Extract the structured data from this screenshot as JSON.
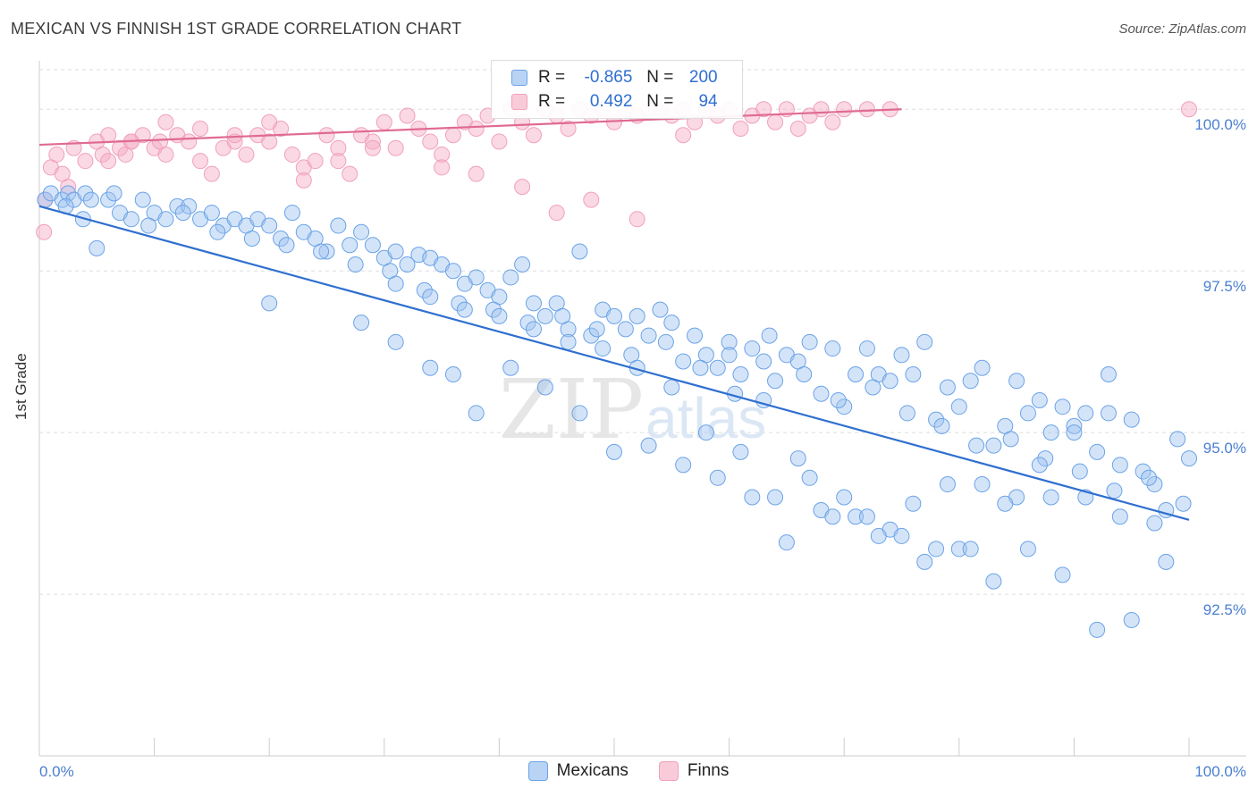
{
  "chart_data": {
    "type": "scatter",
    "title": "MEXICAN VS FINNISH 1ST GRADE CORRELATION CHART",
    "source": "Source: ZipAtlas.com",
    "xlabel": "",
    "ylabel": "1st Grade",
    "xlim": [
      0,
      100
    ],
    "ylim": [
      90.0,
      100.75
    ],
    "x_tick_labels": [
      "0.0%",
      "100.0%"
    ],
    "y_ticks": [
      {
        "value": 100.0,
        "label": "100.0%"
      },
      {
        "value": 97.5,
        "label": "97.5%"
      },
      {
        "value": 95.0,
        "label": "95.0%"
      },
      {
        "value": 92.5,
        "label": "92.5%"
      }
    ],
    "watermark": "ZIPatlas",
    "legend": {
      "r_label": "R =",
      "n_label": "N =",
      "rows": [
        {
          "r": "-0.865",
          "n": "200"
        },
        {
          "r": "0.492",
          "n": "94"
        }
      ]
    },
    "series": [
      {
        "name": "Mexicans",
        "color": "#6aa3e8",
        "line_color": "#2f6fd0",
        "trend": {
          "x": [
            0,
            100
          ],
          "y": [
            98.5,
            93.65
          ]
        },
        "points": [
          [
            0.5,
            98.6
          ],
          [
            1,
            98.7
          ],
          [
            2,
            98.6
          ],
          [
            2.5,
            98.7
          ],
          [
            3,
            98.6
          ],
          [
            4,
            98.7
          ],
          [
            4.5,
            98.6
          ],
          [
            5,
            97.85
          ],
          [
            6,
            98.6
          ],
          [
            7,
            98.4
          ],
          [
            8,
            98.3
          ],
          [
            9,
            98.6
          ],
          [
            10,
            98.4
          ],
          [
            11,
            98.3
          ],
          [
            12,
            98.5
          ],
          [
            13,
            98.5
          ],
          [
            14,
            98.3
          ],
          [
            15,
            98.4
          ],
          [
            16,
            98.2
          ],
          [
            17,
            98.3
          ],
          [
            18,
            98.2
          ],
          [
            19,
            98.3
          ],
          [
            20,
            98.2
          ],
          [
            21,
            98.0
          ],
          [
            22,
            98.4
          ],
          [
            23,
            98.1
          ],
          [
            24,
            98.0
          ],
          [
            25,
            97.8
          ],
          [
            26,
            98.2
          ],
          [
            27,
            97.9
          ],
          [
            28,
            98.1
          ],
          [
            29,
            97.9
          ],
          [
            30,
            97.7
          ],
          [
            31,
            97.8
          ],
          [
            32,
            97.6
          ],
          [
            33,
            97.75
          ],
          [
            34,
            97.7
          ],
          [
            35,
            97.6
          ],
          [
            36,
            97.5
          ],
          [
            37,
            97.3
          ],
          [
            38,
            97.4
          ],
          [
            39,
            97.2
          ],
          [
            40,
            97.1
          ],
          [
            41,
            97.4
          ],
          [
            42,
            97.6
          ],
          [
            43,
            97.0
          ],
          [
            44,
            96.8
          ],
          [
            45,
            97.0
          ],
          [
            46,
            96.6
          ],
          [
            47,
            97.8
          ],
          [
            48,
            96.5
          ],
          [
            49,
            96.9
          ],
          [
            50,
            96.8
          ],
          [
            51,
            96.6
          ],
          [
            52,
            96.8
          ],
          [
            53,
            96.5
          ],
          [
            54,
            96.9
          ],
          [
            55,
            96.7
          ],
          [
            56,
            96.1
          ],
          [
            57,
            96.5
          ],
          [
            58,
            96.2
          ],
          [
            59,
            96.0
          ],
          [
            60,
            96.4
          ],
          [
            61,
            95.9
          ],
          [
            62,
            96.3
          ],
          [
            63,
            96.1
          ],
          [
            64,
            95.8
          ],
          [
            65,
            96.2
          ],
          [
            66,
            96.1
          ],
          [
            67,
            96.4
          ],
          [
            68,
            95.6
          ],
          [
            69,
            96.3
          ],
          [
            70,
            95.4
          ],
          [
            71,
            95.9
          ],
          [
            72,
            96.3
          ],
          [
            73,
            95.9
          ],
          [
            74,
            95.8
          ],
          [
            75,
            96.2
          ],
          [
            76,
            95.9
          ],
          [
            77,
            96.4
          ],
          [
            78,
            95.2
          ],
          [
            79,
            95.7
          ],
          [
            80,
            95.4
          ],
          [
            81,
            95.8
          ],
          [
            82,
            96.0
          ],
          [
            83,
            94.8
          ],
          [
            84,
            95.1
          ],
          [
            85,
            95.8
          ],
          [
            86,
            95.3
          ],
          [
            87,
            95.5
          ],
          [
            88,
            95.0
          ],
          [
            89,
            95.4
          ],
          [
            90,
            95.1
          ],
          [
            91,
            95.3
          ],
          [
            92,
            94.7
          ],
          [
            93,
            95.9
          ],
          [
            94,
            94.5
          ],
          [
            95,
            95.2
          ],
          [
            96,
            94.4
          ],
          [
            97,
            94.2
          ],
          [
            98,
            93.8
          ],
          [
            99,
            94.9
          ],
          [
            100,
            94.6
          ],
          [
            2.3,
            98.5
          ],
          [
            3.8,
            98.3
          ],
          [
            6.5,
            98.7
          ],
          [
            9.5,
            98.2
          ],
          [
            12.5,
            98.4
          ],
          [
            15.5,
            98.1
          ],
          [
            18.5,
            98.0
          ],
          [
            21.5,
            97.9
          ],
          [
            24.5,
            97.8
          ],
          [
            27.5,
            97.6
          ],
          [
            30.5,
            97.5
          ],
          [
            33.5,
            97.2
          ],
          [
            36.5,
            97.0
          ],
          [
            39.5,
            96.9
          ],
          [
            42.5,
            96.7
          ],
          [
            45.5,
            96.8
          ],
          [
            48.5,
            96.6
          ],
          [
            51.5,
            96.2
          ],
          [
            54.5,
            96.4
          ],
          [
            57.5,
            96.0
          ],
          [
            60.5,
            95.6
          ],
          [
            63.5,
            96.5
          ],
          [
            66.5,
            95.9
          ],
          [
            69.5,
            95.5
          ],
          [
            72.5,
            95.7
          ],
          [
            75.5,
            95.3
          ],
          [
            78.5,
            95.1
          ],
          [
            81.5,
            94.8
          ],
          [
            84.5,
            94.9
          ],
          [
            87.5,
            94.6
          ],
          [
            90.5,
            94.4
          ],
          [
            93.5,
            94.1
          ],
          [
            96.5,
            94.3
          ],
          [
            99.5,
            93.9
          ],
          [
            20,
            97.0
          ],
          [
            28,
            96.7
          ],
          [
            31,
            96.4
          ],
          [
            34,
            96.0
          ],
          [
            36,
            95.9
          ],
          [
            38,
            95.3
          ],
          [
            41,
            96.0
          ],
          [
            44,
            95.7
          ],
          [
            47,
            95.3
          ],
          [
            50,
            94.7
          ],
          [
            53,
            94.8
          ],
          [
            56,
            94.5
          ],
          [
            59,
            94.3
          ],
          [
            62,
            94.0
          ],
          [
            65,
            93.3
          ],
          [
            68,
            93.8
          ],
          [
            71,
            93.7
          ],
          [
            74,
            93.5
          ],
          [
            77,
            93.0
          ],
          [
            80,
            93.2
          ],
          [
            83,
            92.7
          ],
          [
            86,
            93.2
          ],
          [
            89,
            92.8
          ],
          [
            92,
            91.95
          ],
          [
            95,
            92.1
          ],
          [
            98,
            93.0
          ],
          [
            97,
            93.6
          ],
          [
            94,
            93.7
          ],
          [
            91,
            94.0
          ],
          [
            88,
            94.0
          ],
          [
            85,
            94.0
          ],
          [
            82,
            94.2
          ],
          [
            79,
            94.2
          ],
          [
            76,
            93.9
          ],
          [
            73,
            93.4
          ],
          [
            70,
            94.0
          ],
          [
            67,
            94.3
          ],
          [
            64,
            94.0
          ],
          [
            61,
            94.7
          ],
          [
            58,
            95.0
          ],
          [
            55,
            95.7
          ],
          [
            52,
            96.0
          ],
          [
            49,
            96.3
          ],
          [
            46,
            96.4
          ],
          [
            43,
            96.6
          ],
          [
            40,
            96.8
          ],
          [
            37,
            96.9
          ],
          [
            34,
            97.1
          ],
          [
            31,
            97.3
          ],
          [
            60,
            96.2
          ],
          [
            63,
            95.5
          ],
          [
            66,
            94.6
          ],
          [
            69,
            93.7
          ],
          [
            72,
            93.7
          ],
          [
            75,
            93.4
          ],
          [
            78,
            93.2
          ],
          [
            81,
            93.2
          ],
          [
            84,
            93.9
          ],
          [
            87,
            94.5
          ],
          [
            90,
            95.0
          ],
          [
            93,
            95.3
          ]
        ]
      },
      {
        "name": "Finns",
        "color": "#f2a0bb",
        "line_color": "#e06a93",
        "trend": {
          "x": [
            0,
            75
          ],
          "y": [
            99.45,
            100.0
          ]
        },
        "points": [
          [
            0.5,
            98.6
          ],
          [
            1,
            99.1
          ],
          [
            1.5,
            99.3
          ],
          [
            2,
            99.0
          ],
          [
            2.5,
            98.8
          ],
          [
            3,
            99.4
          ],
          [
            4,
            99.2
          ],
          [
            5,
            99.5
          ],
          [
            5.5,
            99.3
          ],
          [
            6,
            99.6
          ],
          [
            7,
            99.4
          ],
          [
            7.5,
            99.3
          ],
          [
            8,
            99.5
          ],
          [
            9,
            99.6
          ],
          [
            10,
            99.4
          ],
          [
            10.5,
            99.5
          ],
          [
            11,
            99.3
          ],
          [
            12,
            99.6
          ],
          [
            13,
            99.5
          ],
          [
            14,
            99.2
          ],
          [
            15,
            99.0
          ],
          [
            16,
            99.4
          ],
          [
            17,
            99.5
          ],
          [
            18,
            99.3
          ],
          [
            19,
            99.6
          ],
          [
            20,
            99.5
          ],
          [
            21,
            99.7
          ],
          [
            22,
            99.3
          ],
          [
            23,
            99.1
          ],
          [
            24,
            99.2
          ],
          [
            25,
            99.6
          ],
          [
            26,
            99.4
          ],
          [
            27,
            99.0
          ],
          [
            28,
            99.6
          ],
          [
            29,
            99.5
          ],
          [
            30,
            99.8
          ],
          [
            31,
            99.4
          ],
          [
            32,
            99.9
          ],
          [
            33,
            99.7
          ],
          [
            34,
            99.5
          ],
          [
            35,
            99.3
          ],
          [
            36,
            99.6
          ],
          [
            37,
            99.8
          ],
          [
            38,
            99.7
          ],
          [
            39,
            99.9
          ],
          [
            40,
            99.5
          ],
          [
            41,
            100.0
          ],
          [
            42,
            99.8
          ],
          [
            43,
            99.6
          ],
          [
            44,
            100.0
          ],
          [
            45,
            99.9
          ],
          [
            46,
            99.7
          ],
          [
            47,
            100.0
          ],
          [
            48,
            99.9
          ],
          [
            49,
            100.0
          ],
          [
            50,
            99.8
          ],
          [
            51,
            100.0
          ],
          [
            52,
            99.9
          ],
          [
            53,
            100.0
          ],
          [
            54,
            100.0
          ],
          [
            55,
            99.9
          ],
          [
            56,
            100.0
          ],
          [
            57,
            99.8
          ],
          [
            58,
            100.0
          ],
          [
            59,
            99.9
          ],
          [
            60,
            100.0
          ],
          [
            61,
            99.7
          ],
          [
            62,
            99.9
          ],
          [
            63,
            100.0
          ],
          [
            64,
            99.8
          ],
          [
            65,
            100.0
          ],
          [
            66,
            99.7
          ],
          [
            67,
            99.9
          ],
          [
            68,
            100.0
          ],
          [
            69,
            99.8
          ],
          [
            70,
            100.0
          ],
          [
            72,
            100.0
          ],
          [
            74,
            100.0
          ],
          [
            100,
            100.0
          ],
          [
            0.4,
            98.1
          ],
          [
            6,
            99.2
          ],
          [
            8,
            99.5
          ],
          [
            11,
            99.8
          ],
          [
            14,
            99.7
          ],
          [
            17,
            99.6
          ],
          [
            20,
            99.8
          ],
          [
            23,
            98.9
          ],
          [
            26,
            99.2
          ],
          [
            29,
            99.4
          ],
          [
            35,
            99.1
          ],
          [
            38,
            99.0
          ],
          [
            42,
            98.8
          ],
          [
            45,
            98.4
          ],
          [
            48,
            98.6
          ],
          [
            52,
            98.3
          ],
          [
            56,
            99.6
          ]
        ]
      }
    ]
  }
}
